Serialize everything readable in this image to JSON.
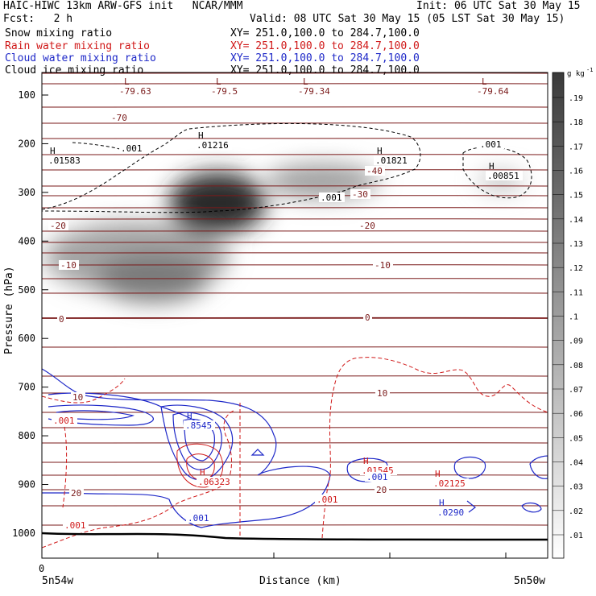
{
  "header": {
    "left_title": "HAIC-HIWC 13km ARW-GFS init   NCAR/MMM",
    "init": "Init: 06 UTC Sat 30 May 15",
    "fcst": "Fcst:   2 h",
    "valid": "Valid: 08 UTC Sat 30 May 15 (05 LST Sat 30 May 15)",
    "fields": [
      {
        "name": "Snow mixing ratio",
        "xy": "XY= 251.0,100.0 to 284.7,100.0",
        "color": "#000000"
      },
      {
        "name": "Rain water mixing ratio",
        "xy": "XY= 251.0,100.0 to 284.7,100.0",
        "color": "#d01818"
      },
      {
        "name": "Cloud water mixing ratio",
        "xy": "XY= 251.0,100.0 to 284.7,100.0",
        "color": "#1e28c8"
      },
      {
        "name": "Cloud ice mixing ratio",
        "xy": "XY= 251.0,100.0 to 284.7,100.0",
        "color": "#000000"
      }
    ]
  },
  "chart_data": {
    "type": "heatmap",
    "ylabel": "Pressure (hPa)",
    "xlabel": "Distance (km)",
    "x_start_tick": "0",
    "x_left_label": "5n54w",
    "x_right_label": "5n50w",
    "ylim": [
      1050,
      70
    ],
    "y_ticks": [
      100,
      200,
      300,
      400,
      500,
      600,
      700,
      800,
      900,
      1000
    ],
    "colorbar": {
      "unit": "g kg",
      "unit_exp": "-1",
      "ticks": [
        ".19",
        ".18",
        ".17",
        ".16",
        ".15",
        ".14",
        ".13",
        ".12",
        ".11",
        ".1",
        ".09",
        ".08",
        ".07",
        ".06",
        ".05",
        ".04",
        ".03",
        ".02",
        ".01"
      ]
    },
    "temperature_contour_labels": [
      "-70",
      "-40",
      "-30",
      "-20",
      "-20",
      "-10",
      "-10",
      "0",
      "0",
      "10",
      "10",
      "20",
      "20"
    ],
    "low_labels": [
      "-79.63",
      "-79.5",
      "-79.34",
      "-79.64"
    ],
    "high_labels": [
      {
        "value": ".01583",
        "color": "#000000"
      },
      {
        "value": ".01216",
        "color": "#000000"
      },
      {
        "value": ".01821",
        "color": "#000000"
      },
      {
        "value": ".00851",
        "color": "#000000"
      },
      {
        "value": ".8545",
        "color": "#1e28c8"
      },
      {
        "value": ".06323",
        "color": "#d01818"
      },
      {
        "value": ".01545",
        "color": "#d01818"
      },
      {
        "value": ".02125",
        "color": "#d01818"
      },
      {
        "value": ".0290",
        "color": "#1e28c8"
      }
    ],
    "contour_labels": [
      {
        "value": ".001",
        "color": "#000000"
      },
      {
        "value": ".001",
        "color": "#000000"
      },
      {
        "value": ".001",
        "color": "#000000"
      },
      {
        "value": ".001",
        "color": "#d01818"
      },
      {
        "value": ".001",
        "color": "#d01818"
      },
      {
        "value": ".001",
        "color": "#d01818"
      },
      {
        "value": ".001",
        "color": "#1e28c8"
      },
      {
        "value": ".001",
        "color": "#1e28c8"
      }
    ],
    "colors": {
      "snow_shade": "#303030",
      "temperature": "#7a1a1a",
      "rain": "#d01818",
      "cloud_water": "#1e28c8",
      "cloud_ice": "#000000"
    }
  }
}
